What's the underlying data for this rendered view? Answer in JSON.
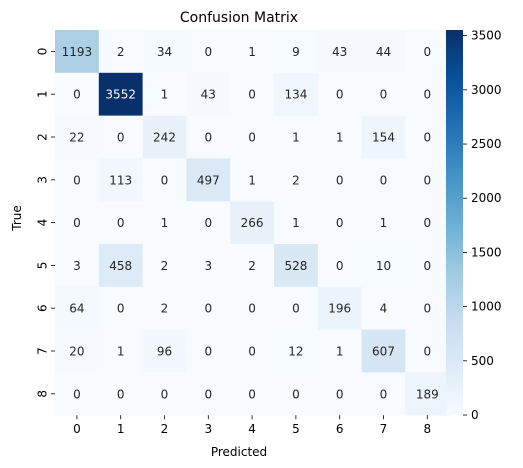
{
  "chart_data": {
    "type": "heatmap",
    "title": "Confusion Matrix",
    "xlabel": "Predicted",
    "ylabel": "True",
    "x_categories": [
      "0",
      "1",
      "2",
      "3",
      "4",
      "5",
      "6",
      "7",
      "8"
    ],
    "y_categories": [
      "0",
      "1",
      "2",
      "3",
      "4",
      "5",
      "6",
      "7",
      "8"
    ],
    "values": [
      [
        1193,
        2,
        34,
        0,
        1,
        9,
        43,
        44,
        0
      ],
      [
        0,
        3552,
        1,
        43,
        0,
        134,
        0,
        0,
        0
      ],
      [
        22,
        0,
        242,
        0,
        0,
        1,
        1,
        154,
        0
      ],
      [
        0,
        113,
        0,
        497,
        1,
        2,
        0,
        0,
        0
      ],
      [
        0,
        0,
        1,
        0,
        266,
        1,
        0,
        1,
        0
      ],
      [
        3,
        458,
        2,
        3,
        2,
        528,
        0,
        10,
        0
      ],
      [
        64,
        0,
        2,
        0,
        0,
        0,
        196,
        4,
        0
      ],
      [
        20,
        1,
        96,
        0,
        0,
        12,
        1,
        607,
        0
      ],
      [
        0,
        0,
        0,
        0,
        0,
        0,
        0,
        0,
        189
      ]
    ],
    "colormap": "Blues",
    "colorbar_range": [
      0,
      3552
    ],
    "colorbar_ticks": [
      "0",
      "500",
      "1000",
      "1500",
      "2000",
      "2500",
      "3000",
      "3500"
    ],
    "colorbar_tick_values": [
      0,
      500,
      1000,
      1500,
      2000,
      2500,
      3000,
      3500
    ],
    "annotations": true,
    "grid": false
  }
}
